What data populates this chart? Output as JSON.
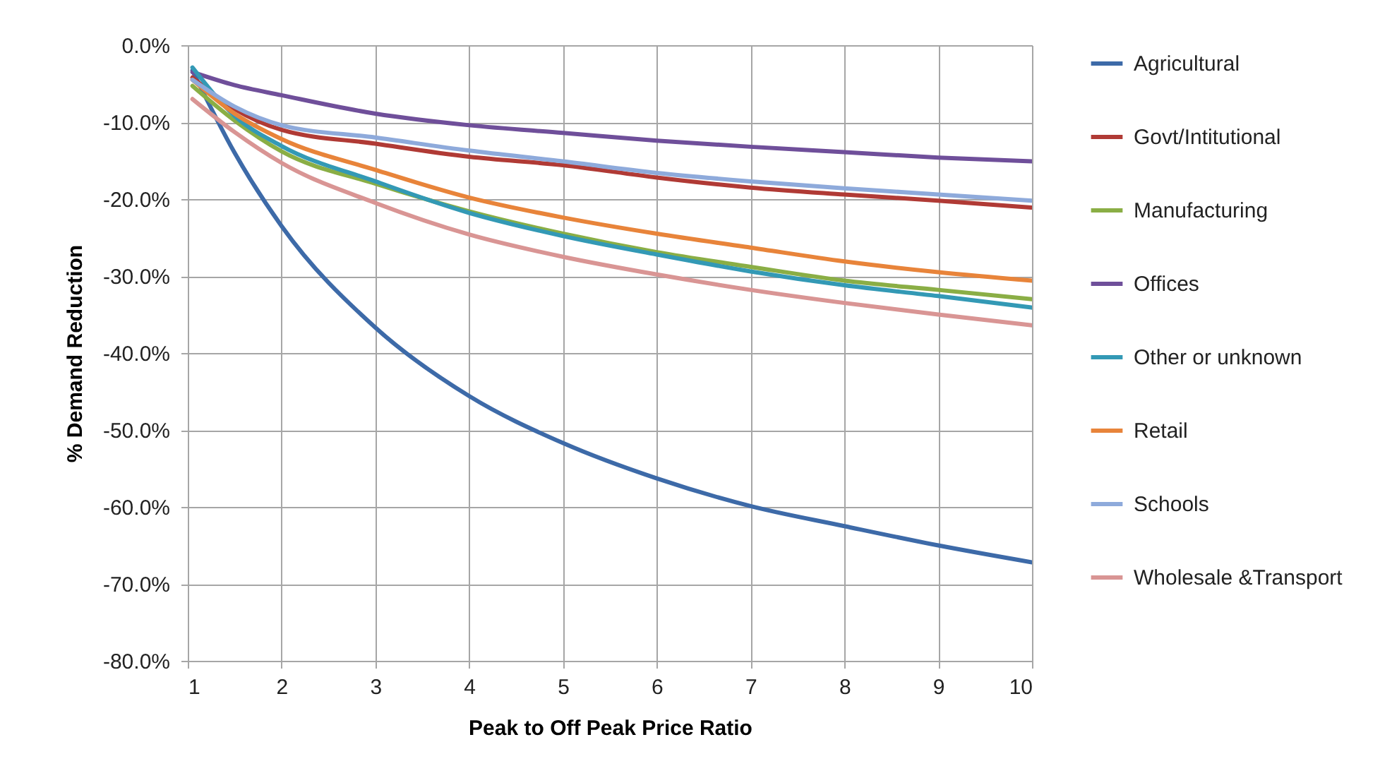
{
  "chart_data": {
    "type": "line",
    "xlabel": "Peak to Off Peak Price Ratio",
    "ylabel": "% Demand Reduction",
    "x": [
      1.05,
      1.5,
      2,
      3,
      4,
      5,
      6,
      7,
      8,
      9,
      10
    ],
    "xlim": [
      1,
      10
    ],
    "xticks": [
      1,
      2,
      3,
      4,
      5,
      6,
      7,
      8,
      9,
      10
    ],
    "ylim": [
      -80,
      0
    ],
    "yticks": [
      {
        "value": 0,
        "label": "0.0%"
      },
      {
        "value": -10,
        "label": "-10.0%"
      },
      {
        "value": -20,
        "label": "-20.0%"
      },
      {
        "value": -30,
        "label": "-30.0%"
      },
      {
        "value": -40,
        "label": "-40.0%"
      },
      {
        "value": -50,
        "label": "-50.0%"
      },
      {
        "value": -60,
        "label": "-60.0%"
      },
      {
        "value": -70,
        "label": "-70.0%"
      },
      {
        "value": -80,
        "label": "-80.0%"
      }
    ],
    "grid": true,
    "legend": "right",
    "marker": "none",
    "line_style": "solid",
    "series": [
      {
        "name": "Agricultural",
        "color": "#3d6aa8",
        "values": [
          -3.3,
          -14,
          -23.5,
          -36.7,
          -45.6,
          -51.7,
          -56.3,
          -59.9,
          -62.5,
          -65,
          -67.2
        ]
      },
      {
        "name": "Govt/Intitutional",
        "color": "#b03a35",
        "values": [
          -4.2,
          -8.3,
          -11.0,
          -12.8,
          -14.5,
          -15.6,
          -17.2,
          -18.5,
          -19.4,
          -20.2,
          -21.1
        ]
      },
      {
        "name": "Manufacturing",
        "color": "#8aae45",
        "values": [
          -5.3,
          -9.8,
          -13.8,
          -18.0,
          -21.6,
          -24.5,
          -26.9,
          -28.8,
          -30.6,
          -31.8,
          -33.0
        ]
      },
      {
        "name": "Offices",
        "color": "#6f4f9a",
        "values": [
          -3.5,
          -5.2,
          -6.5,
          -8.9,
          -10.4,
          -11.4,
          -12.4,
          -13.2,
          -13.9,
          -14.6,
          -15.1
        ]
      },
      {
        "name": "Other or unknown",
        "color": "#3399b5",
        "values": [
          -2.9,
          -9.2,
          -13.1,
          -17.7,
          -21.8,
          -24.8,
          -27.2,
          -29.4,
          -31.2,
          -32.6,
          -34.1
        ]
      },
      {
        "name": "Retail",
        "color": "#e8843a",
        "values": [
          -4.5,
          -8.9,
          -12.2,
          -16.2,
          -19.8,
          -22.4,
          -24.5,
          -26.3,
          -28.1,
          -29.5,
          -30.6
        ]
      },
      {
        "name": "Schools",
        "color": "#8eaadb",
        "values": [
          -4.5,
          -8.0,
          -10.4,
          -12.0,
          -13.7,
          -15.1,
          -16.6,
          -17.7,
          -18.6,
          -19.4,
          -20.2
        ]
      },
      {
        "name": "Wholesale &Transport",
        "color": "#d99594",
        "values": [
          -7.0,
          -11.3,
          -15.3,
          -20.5,
          -24.6,
          -27.5,
          -29.8,
          -31.8,
          -33.5,
          -35.0,
          -36.4
        ]
      }
    ]
  }
}
